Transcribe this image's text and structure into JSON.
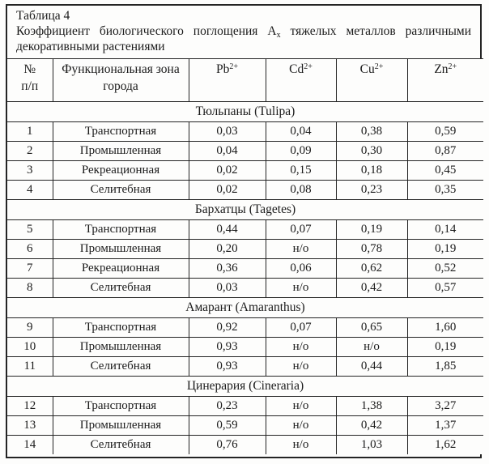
{
  "table": {
    "caption": "Таблица 4",
    "title": {
      "line1_before_sub": "Коэффициент биологического поглощения А",
      "sub": "х",
      "line1_after_sub": " тяжелых металлов различными",
      "line2": "декоративными растениями"
    },
    "columns": {
      "num_line1": "№",
      "num_line2": "п/п",
      "zone_line1": "Функциональная зона",
      "zone_line2": "города",
      "metals": [
        {
          "symbol": "Pb",
          "charge": "2+"
        },
        {
          "symbol": "Cd",
          "charge": "2+"
        },
        {
          "symbol": "Cu",
          "charge": "2+"
        },
        {
          "symbol": "Zn",
          "charge": "2+"
        }
      ]
    },
    "sections": [
      {
        "name": "Тюльпаны (Tulipa)",
        "rows": [
          {
            "num": "1",
            "zone": "Транспортная",
            "pb": "0,03",
            "cd": "0,04",
            "cu": "0,38",
            "zn": "0,59"
          },
          {
            "num": "2",
            "zone": "Промышленная",
            "pb": "0,04",
            "cd": "0,09",
            "cu": "0,30",
            "zn": "0,87"
          },
          {
            "num": "3",
            "zone": "Рекреационная",
            "pb": "0,02",
            "cd": "0,15",
            "cu": "0,18",
            "zn": "0,45"
          },
          {
            "num": "4",
            "zone": "Селитебная",
            "pb": "0,02",
            "cd": "0,08",
            "cu": "0,23",
            "zn": "0,35"
          }
        ]
      },
      {
        "name": "Бархатцы (Tagetes)",
        "rows": [
          {
            "num": "5",
            "zone": "Транспортная",
            "pb": "0,44",
            "cd": "0,07",
            "cu": "0,19",
            "zn": "0,14"
          },
          {
            "num": "6",
            "zone": "Промышленная",
            "pb": "0,20",
            "cd": "н/о",
            "cu": "0,78",
            "zn": "0,19"
          },
          {
            "num": "7",
            "zone": "Рекреационная",
            "pb": "0,36",
            "cd": "0,06",
            "cu": "0,62",
            "zn": "0,52"
          },
          {
            "num": "8",
            "zone": "Селитебная",
            "pb": "0,03",
            "cd": "н/о",
            "cu": "0,42",
            "zn": "0,57"
          }
        ]
      },
      {
        "name": "Амарант (Amaranthus)",
        "rows": [
          {
            "num": "9",
            "zone": "Транспортная",
            "pb": "0,92",
            "cd": "0,07",
            "cu": "0,65",
            "zn": "1,60"
          },
          {
            "num": "10",
            "zone": "Промышленная",
            "pb": "0,93",
            "cd": "н/о",
            "cu": "н/о",
            "zn": "0,19"
          },
          {
            "num": "11",
            "zone": "Селитебная",
            "pb": "0,93",
            "cd": "н/о",
            "cu": "0,44",
            "zn": "1,85"
          }
        ]
      },
      {
        "name": "Цинерария (Cineraria)",
        "rows": [
          {
            "num": "12",
            "zone": "Транспортная",
            "pb": "0,23",
            "cd": "н/о",
            "cu": "1,38",
            "zn": "3,27"
          },
          {
            "num": "13",
            "zone": "Промышленная",
            "pb": "0,59",
            "cd": "н/о",
            "cu": "0,42",
            "zn": "1,37"
          },
          {
            "num": "14",
            "zone": "Селитебная",
            "pb": "0,76",
            "cd": "н/о",
            "cu": "1,03",
            "zn": "1,62"
          }
        ]
      }
    ]
  }
}
